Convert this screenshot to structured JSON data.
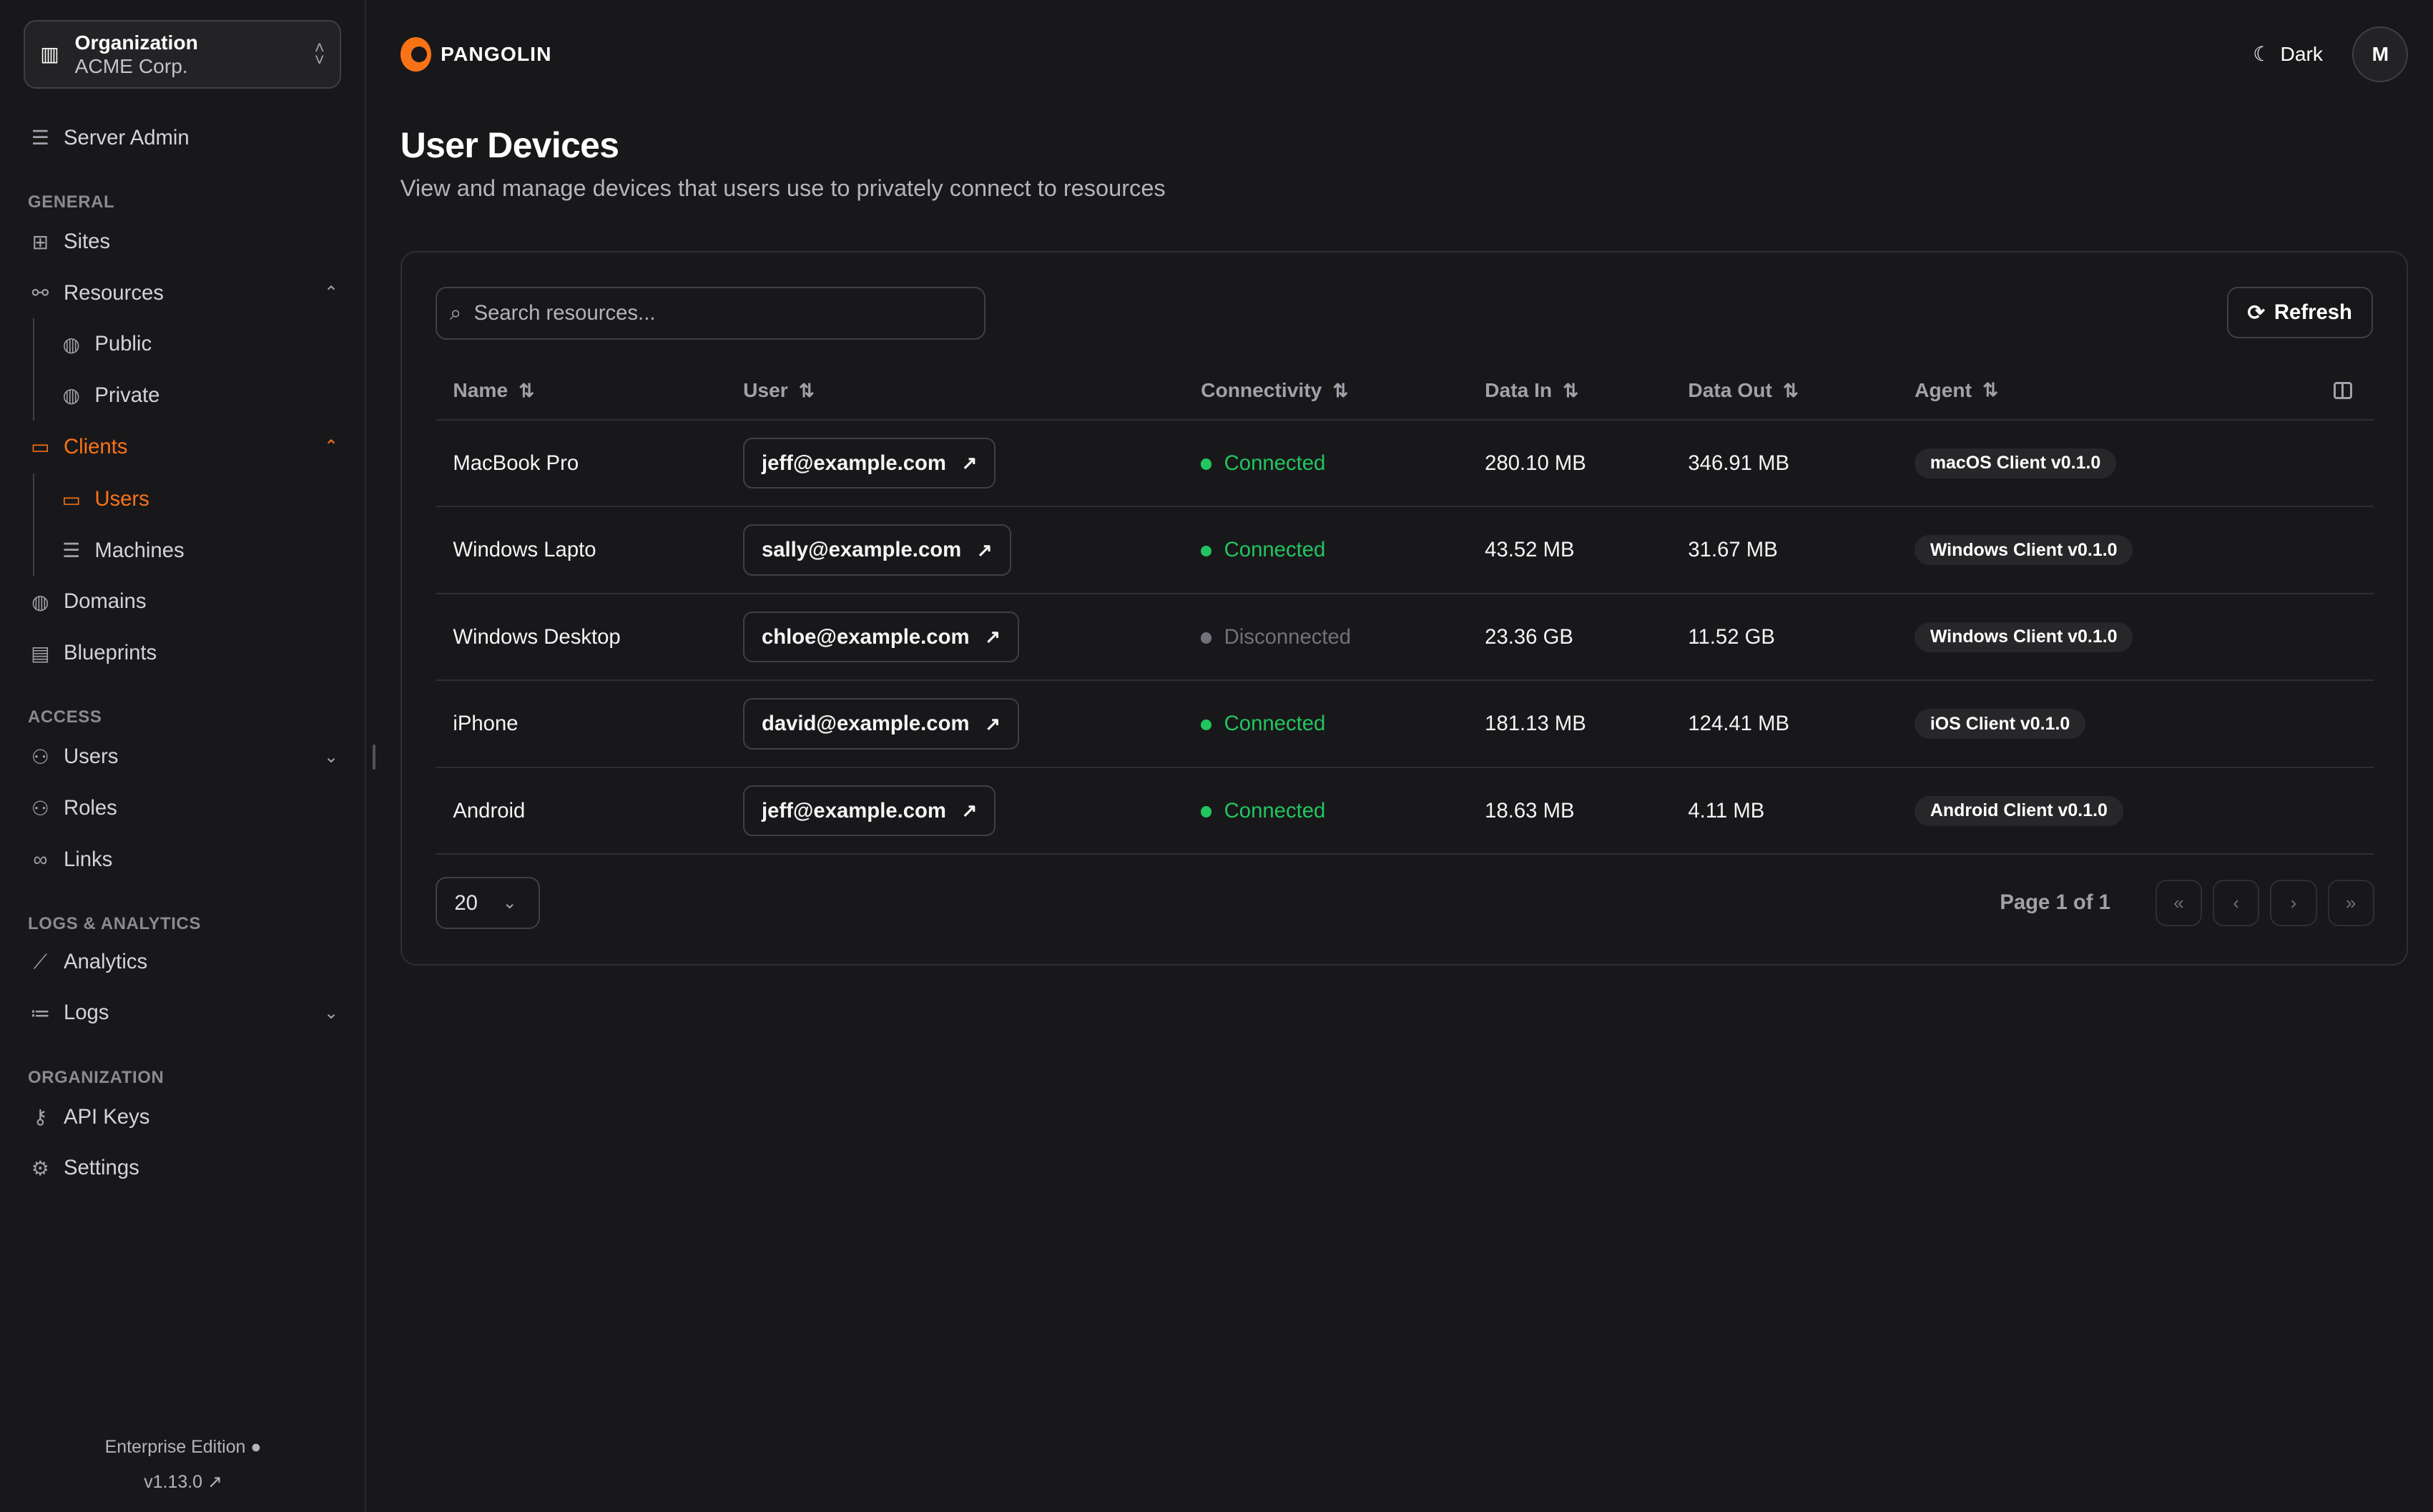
{
  "org": {
    "label": "Organization",
    "name": "ACME Corp."
  },
  "sidebar": {
    "server_admin": "Server Admin",
    "sections": {
      "general": "GENERAL",
      "access": "ACCESS",
      "logs": "LOGS & ANALYTICS",
      "organization": "ORGANIZATION"
    },
    "items": {
      "sites": "Sites",
      "resources": "Resources",
      "public": "Public",
      "private": "Private",
      "clients": "Clients",
      "users": "Users",
      "machines": "Machines",
      "domains": "Domains",
      "blueprints": "Blueprints",
      "access_users": "Users",
      "roles": "Roles",
      "links": "Links",
      "analytics": "Analytics",
      "logs": "Logs",
      "api_keys": "API Keys",
      "settings": "Settings"
    },
    "edition": "Enterprise Edition",
    "version": "v1.13.0"
  },
  "header": {
    "brand": "PANGOLIN",
    "theme": "Dark",
    "avatar": "M"
  },
  "page": {
    "title": "User Devices",
    "subtitle": "View and manage devices that users use to privately connect to resources"
  },
  "toolbar": {
    "search_placeholder": "Search resources...",
    "refresh": "Refresh"
  },
  "table": {
    "columns": [
      "Name",
      "User",
      "Connectivity",
      "Data In",
      "Data Out",
      "Agent"
    ],
    "rows": [
      {
        "name": "MacBook Pro",
        "user": "jeff@example.com",
        "status": "Connected",
        "in": "280.10 MB",
        "out": "346.91 MB",
        "agent": "macOS Client v0.1.0"
      },
      {
        "name": "Windows Lapto",
        "user": "sally@example.com",
        "status": "Connected",
        "in": "43.52 MB",
        "out": "31.67 MB",
        "agent": "Windows Client v0.1.0"
      },
      {
        "name": "Windows Desktop",
        "user": "chloe@example.com",
        "status": "Disconnected",
        "in": "23.36 GB",
        "out": "11.52 GB",
        "agent": "Windows Client v0.1.0"
      },
      {
        "name": "iPhone",
        "user": "david@example.com",
        "status": "Connected",
        "in": "181.13 MB",
        "out": "124.41 MB",
        "agent": "iOS Client v0.1.0"
      },
      {
        "name": "Android",
        "user": "jeff@example.com",
        "status": "Connected",
        "in": "18.63 MB",
        "out": "4.11 MB",
        "agent": "Android Client v0.1.0"
      }
    ]
  },
  "pagination": {
    "page_size": "20",
    "page_info": "Page 1 of 1"
  },
  "colors": {
    "accent": "#f97316",
    "connected": "#22c55e",
    "disconnected": "#71717a"
  }
}
